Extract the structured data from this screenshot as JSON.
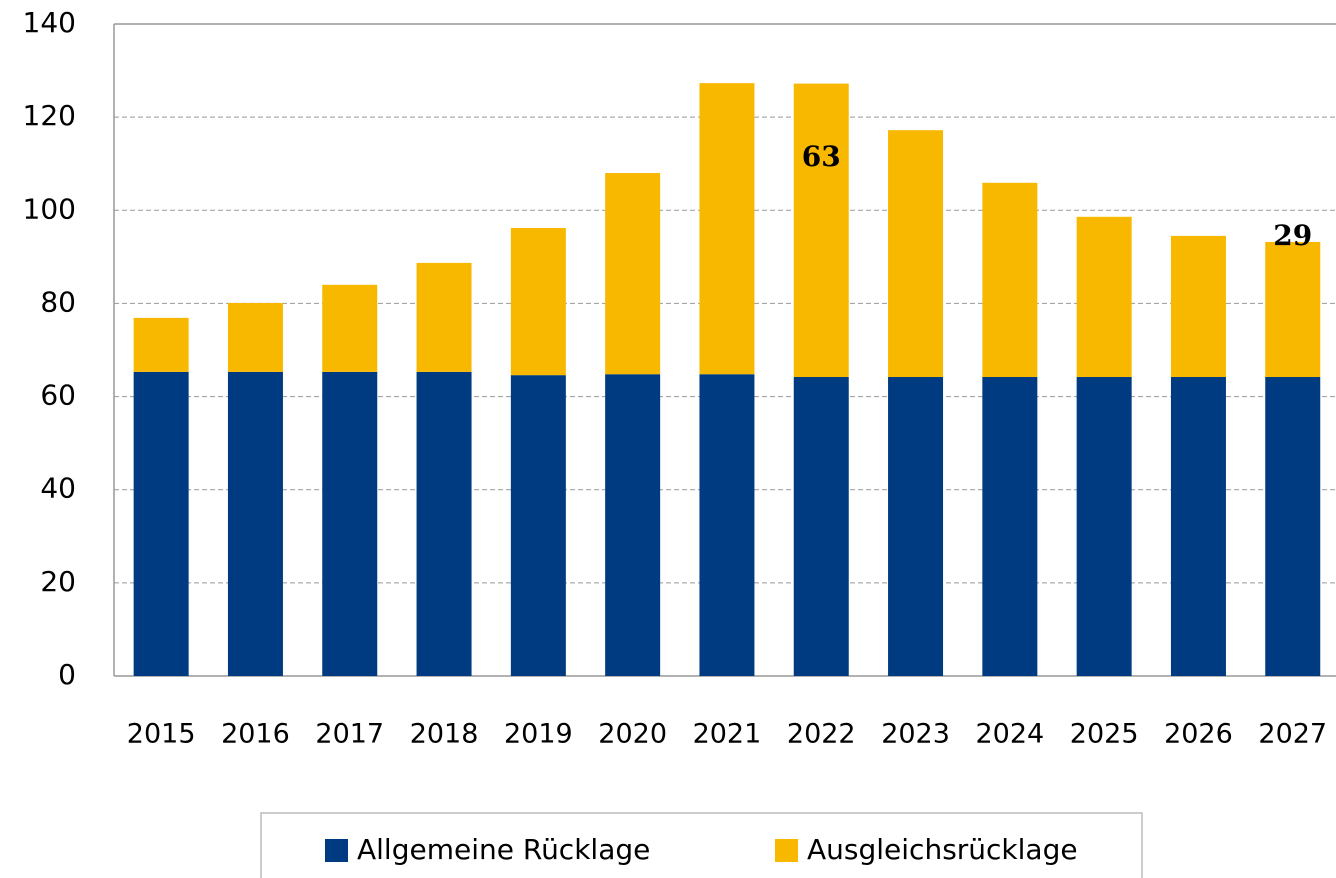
{
  "chart_data": {
    "type": "stacked_bar",
    "categories": [
      "2015",
      "2016",
      "2017",
      "2018",
      "2019",
      "2020",
      "2021",
      "2022",
      "2023",
      "2024",
      "2025",
      "2026",
      "2027"
    ],
    "series": [
      {
        "name": "Allgemeine Rücklage",
        "color": "#003a80",
        "values": [
          65.3,
          65.3,
          65.3,
          65.3,
          64.6,
          64.8,
          64.8,
          64.2,
          64.2,
          64.2,
          64.2,
          64.2,
          64.2
        ]
      },
      {
        "name": "Ausgleichsrücklage",
        "color": "#f9b800",
        "values": [
          11.6,
          14.8,
          18.7,
          23.4,
          31.6,
          43.2,
          62.5,
          63,
          53.0,
          41.7,
          34.4,
          30.3,
          29
        ],
        "value_labels": [
          null,
          null,
          null,
          null,
          null,
          null,
          null,
          "63",
          null,
          null,
          null,
          null,
          "29"
        ]
      }
    ],
    "ylim": [
      0,
      140
    ],
    "yticks": [
      0,
      20,
      40,
      60,
      80,
      100,
      120,
      140
    ],
    "grid": true,
    "legend": "bottom"
  }
}
